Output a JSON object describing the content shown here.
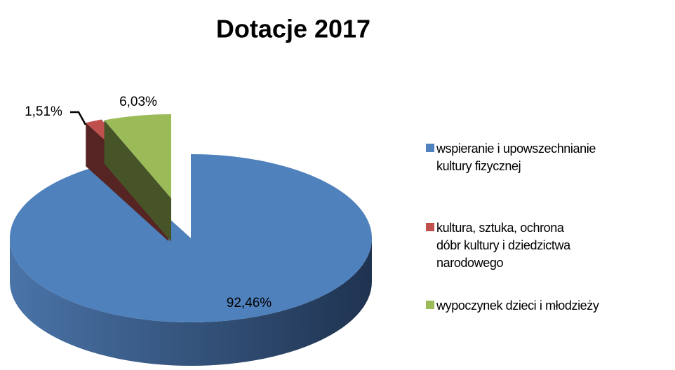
{
  "chart_data": {
    "type": "pie",
    "title": "Dotacje 2017",
    "categories": [
      "wspieranie i upowszechnianie kultury fizycznej",
      "kultura, sztuka,  ochrona dóbr kultury i dziedzictwa narodowego",
      "wypoczynek dzieci i młodzieży"
    ],
    "values": [
      92.46,
      1.51,
      6.03
    ],
    "value_labels": [
      "92,46%",
      "1,51%",
      "6,03%"
    ],
    "colors": [
      "#4f81bd",
      "#c0504d",
      "#9bbb59"
    ]
  }
}
